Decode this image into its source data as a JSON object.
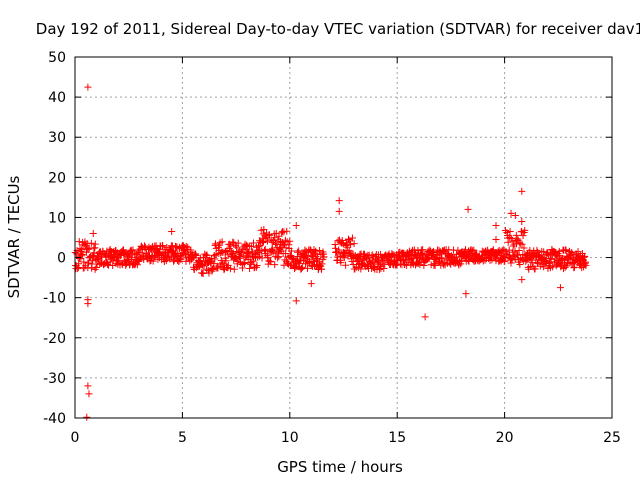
{
  "chart_data": {
    "type": "scatter",
    "title": "Day 192 of 2011, Sidereal Day-to-day VTEC variation (SDTVAR) for receiver dav1",
    "xlabel": "GPS time / hours",
    "ylabel": "SDTVAR / TECUs",
    "xlim": [
      0,
      25
    ],
    "ylim": [
      -40,
      50
    ],
    "xticks": [
      0,
      5,
      10,
      15,
      20,
      25
    ],
    "yticks": [
      -40,
      -30,
      -20,
      -10,
      0,
      10,
      20,
      30,
      40,
      50
    ],
    "grid": true,
    "marker": "+",
    "color": "#ff0000",
    "data_gap_hours": [
      11.6,
      12.1
    ],
    "band_segments": [
      {
        "t0": 0.0,
        "t1": 1.0,
        "low": -3,
        "high": 4
      },
      {
        "t0": 1.0,
        "t1": 3.0,
        "low": -2,
        "high": 2
      },
      {
        "t0": 3.0,
        "t1": 5.5,
        "low": -1,
        "high": 3
      },
      {
        "t0": 5.5,
        "t1": 6.5,
        "low": -4,
        "high": 1
      },
      {
        "t0": 6.5,
        "t1": 8.5,
        "low": -3,
        "high": 4
      },
      {
        "t0": 8.5,
        "t1": 10.0,
        "low": -2,
        "high": 7
      },
      {
        "t0": 10.0,
        "t1": 11.6,
        "low": -3,
        "high": 2
      },
      {
        "t0": 12.1,
        "t1": 13.0,
        "low": -2,
        "high": 5
      },
      {
        "t0": 13.0,
        "t1": 15.0,
        "low": -3,
        "high": 1
      },
      {
        "t0": 15.0,
        "t1": 18.0,
        "low": -2,
        "high": 2
      },
      {
        "t0": 18.0,
        "t1": 20.0,
        "low": -1,
        "high": 2
      },
      {
        "t0": 20.0,
        "t1": 21.0,
        "low": -2,
        "high": 7
      },
      {
        "t0": 21.0,
        "t1": 23.8,
        "low": -3,
        "high": 2
      }
    ],
    "outliers": [
      {
        "x": 0.6,
        "y": 42.5
      },
      {
        "x": 0.6,
        "y": -32
      },
      {
        "x": 0.65,
        "y": -34
      },
      {
        "x": 0.55,
        "y": -39.8
      },
      {
        "x": 0.6,
        "y": -10.5
      },
      {
        "x": 0.6,
        "y": -11.5
      },
      {
        "x": 0.85,
        "y": 6
      },
      {
        "x": 4.5,
        "y": 6.5
      },
      {
        "x": 10.3,
        "y": 8
      },
      {
        "x": 10.3,
        "y": -10.8
      },
      {
        "x": 11.0,
        "y": -6.5
      },
      {
        "x": 12.3,
        "y": 14.2
      },
      {
        "x": 12.3,
        "y": 11.5
      },
      {
        "x": 16.3,
        "y": -14.8
      },
      {
        "x": 18.3,
        "y": 12
      },
      {
        "x": 18.2,
        "y": -9
      },
      {
        "x": 19.6,
        "y": 8
      },
      {
        "x": 19.6,
        "y": 4.5
      },
      {
        "x": 20.3,
        "y": 11
      },
      {
        "x": 20.5,
        "y": 10.5
      },
      {
        "x": 20.8,
        "y": 16.5
      },
      {
        "x": 20.8,
        "y": 9
      },
      {
        "x": 20.8,
        "y": -5.5
      },
      {
        "x": 22.6,
        "y": -7.5
      }
    ]
  }
}
